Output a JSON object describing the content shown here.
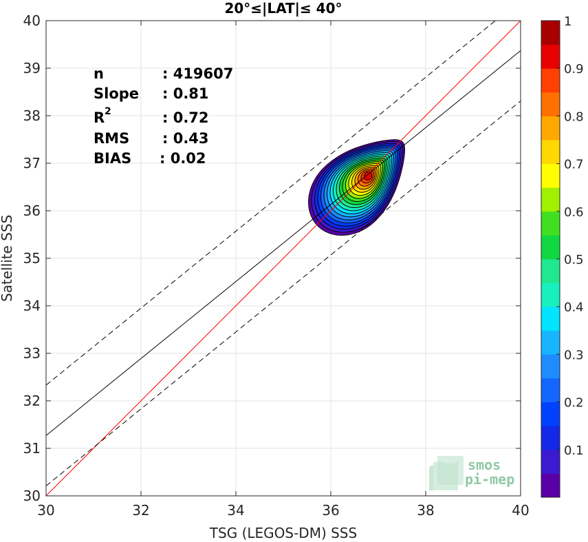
{
  "chart_data": {
    "type": "heatmap",
    "title": "20°≤|LAT|≤ 40°",
    "xlabel": "TSG (LEGOS-DM) SSS",
    "ylabel": "Satellite SSS",
    "xlim": [
      30,
      40
    ],
    "ylim": [
      30,
      40
    ],
    "x_ticks": [
      "30",
      "32",
      "34",
      "36",
      "38",
      "40"
    ],
    "y_ticks": [
      "30",
      "31",
      "32",
      "33",
      "34",
      "35",
      "36",
      "37",
      "38",
      "39",
      "40"
    ],
    "grid": true,
    "stats": [
      {
        "key": "n",
        "value": ": 419607"
      },
      {
        "key": "Slope",
        "value": ": 0.81"
      },
      {
        "key": "R",
        "sup": "2",
        "value": ": 0.72"
      },
      {
        "key": "RMS",
        "value": ": 0.43"
      },
      {
        "key": "BIAS",
        "value": ": 0.02"
      }
    ],
    "fit": {
      "slope": 0.81,
      "intercept": 6.97,
      "band": 1.06
    },
    "identity_line": {
      "slope": 1,
      "intercept": 0
    },
    "density_center": {
      "x": 36.6,
      "y": 36.6
    },
    "colorbar": {
      "ticks": [
        "0.1",
        "0.2",
        "0.3",
        "0.4",
        "0.5",
        "0.6",
        "0.7",
        "0.8",
        "0.9",
        "1"
      ],
      "levels": [
        0,
        0.05,
        0.1,
        0.15,
        0.2,
        0.25,
        0.3,
        0.35,
        0.4,
        0.45,
        0.5,
        0.55,
        0.6,
        0.65,
        0.7,
        0.75,
        0.8,
        0.85,
        0.9,
        0.95,
        1.0
      ],
      "colors": [
        "#ffffff",
        "#5a00a8",
        "#3a1bcf",
        "#1428e8",
        "#0040ff",
        "#1466ff",
        "#1e8cff",
        "#18b4ff",
        "#00e4ff",
        "#18f0c0",
        "#20e890",
        "#10d840",
        "#40e020",
        "#a0f000",
        "#ffff00",
        "#ffd800",
        "#ffa800",
        "#ff7000",
        "#ff4000",
        "#e80000",
        "#a80000"
      ]
    },
    "watermark": [
      "smos",
      "pi-mep"
    ]
  }
}
